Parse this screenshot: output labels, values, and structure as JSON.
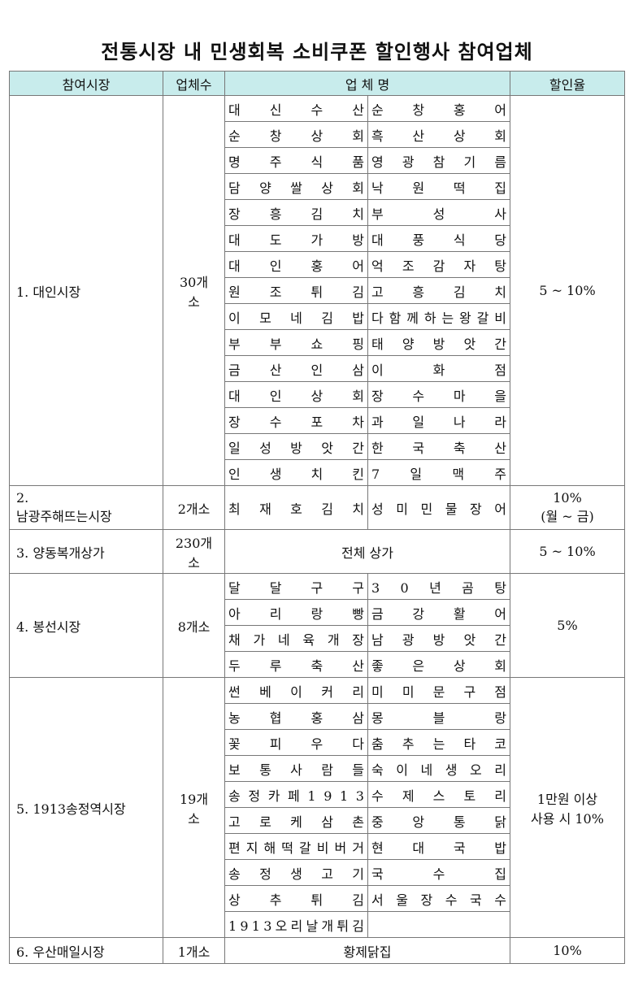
{
  "title": "전통시장 내 민생회복 소비쿠폰 할인행사 참여업체",
  "headers": [
    "참여시장",
    "업체수",
    "업 체 명",
    "할인율"
  ],
  "markets": [
    {
      "name": "1. 대인시장",
      "count": "30개\n소",
      "rate": "5 ~ 10%",
      "stores": [
        [
          "대신수산",
          "순창홍어"
        ],
        [
          "순창상회",
          "흑산상회"
        ],
        [
          "명주식품",
          "영광참기름"
        ],
        [
          "담양쌀상회",
          "낙원떡집"
        ],
        [
          "장흥김치",
          "부성사"
        ],
        [
          "대도가방",
          "대풍식당"
        ],
        [
          "대인홍어",
          "억조감자탕"
        ],
        [
          "원조튀김",
          "고흥김치"
        ],
        [
          "이모네김밥",
          "다함께하는왕갈비"
        ],
        [
          "부부쇼핑",
          "태양방앗간"
        ],
        [
          "금산인삼",
          "이화점"
        ],
        [
          "대인상회",
          "장수마을"
        ],
        [
          "장수포차",
          "과일나라"
        ],
        [
          "일성방앗간",
          "한국축산"
        ],
        [
          "인생치킨",
          "7일맥주"
        ]
      ]
    },
    {
      "name": "2.\n남광주해뜨는시장",
      "count": "2개소",
      "rate": "10%\n(월 ~ 금)",
      "stores": [
        [
          "최재호김치",
          "성미민물장어"
        ]
      ]
    },
    {
      "name": "3. 양동복개상가",
      "count": "230개\n소",
      "rate": "5 ~ 10%",
      "all": "전체 상가"
    },
    {
      "name": "4. 봉선시장",
      "count": "8개소",
      "rate": "5%",
      "stores": [
        [
          "달달구구",
          "30년곰탕"
        ],
        [
          "아리랑빵",
          "금강활어"
        ],
        [
          "채가네육개장",
          "남광방앗간"
        ],
        [
          "두루축산",
          "좋은상회"
        ]
      ]
    },
    {
      "name": "5. 1913송정역시장",
      "count": "19개\n소",
      "rate": "1만원 이상\n사용 시 10%",
      "stores": [
        [
          "썬베이커리",
          "미미문구점"
        ],
        [
          "농협홍삼",
          "몽블랑"
        ],
        [
          "꽃피우다",
          "춤추는타코"
        ],
        [
          "보통사람들",
          "숙이네생오리"
        ],
        [
          "송정카페1913",
          "수제스토리"
        ],
        [
          "고로케삼촌",
          "중앙통닭"
        ],
        [
          "편지해떡갈비버거",
          "현대국밥"
        ],
        [
          "송정생고기",
          "국수집"
        ],
        [
          "상추튀김",
          "서울장수국수"
        ],
        [
          "1913오리날개튀김",
          ""
        ]
      ]
    },
    {
      "name": "6. 우산매일시장",
      "count": "1개소",
      "rate": "10%",
      "all": "황제닭집"
    }
  ]
}
